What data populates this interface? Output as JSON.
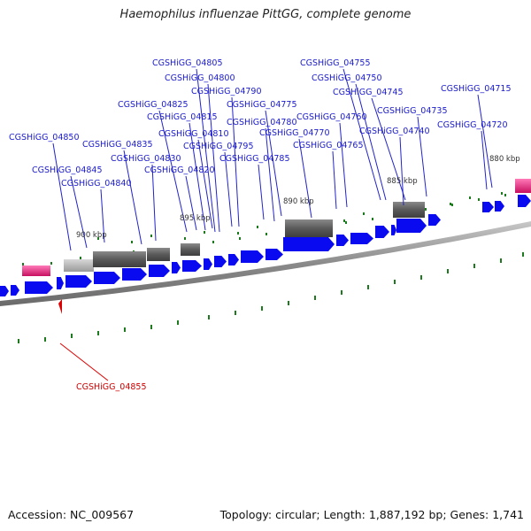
{
  "title": "Haemophilus influenzae PittGG, complete genome",
  "footer": {
    "accession": "Accession: NC_009567",
    "summary": "Topology: circular; Length: 1,887,192 bp; Genes: 1,741"
  },
  "colors": {
    "gene_forward": "#0000ee",
    "gene_blue_label": "#1a1acc",
    "highlight_label": "#cc0000",
    "rna_pink": "#e0287a",
    "repeat_gray": "#606060",
    "light_gray": "#b8b8b8",
    "backbone": "#8a8a8a",
    "tick_green": "#1e7a1e"
  },
  "scale_labels": [
    "880 kbp",
    "885 kbp",
    "890 kbp",
    "895 kbp",
    "900 kbp"
  ],
  "gene_labels": [
    "CGSHiGG_04805",
    "CGSHiGG_04755",
    "CGSHiGG_04800",
    "CGSHiGG_04750",
    "CGSHiGG_04790",
    "CGSHiGG_04745",
    "CGSHiGG_04715",
    "CGSHiGG_04825",
    "CGSHiGG_04775",
    "CGSHiGG_04735",
    "CGSHiGG_04815",
    "CGSHiGG_04760",
    "CGSHiGG_04780",
    "CGSHiGG_04720",
    "CGSHiGG_04810",
    "CGSHiGG_04770",
    "CGSHiGG_04740",
    "CGSHiGG_04850",
    "CGSHiGG_04835",
    "CGSHiGG_04795",
    "CGSHiGG_04765",
    "CGSHiGG_04830",
    "CGSHiGG_04785",
    "CGSHiGG_04845",
    "CGSHiGG_04820",
    "CGSHiGG_04840"
  ],
  "highlight_label": "CGSHiGG_04855"
}
